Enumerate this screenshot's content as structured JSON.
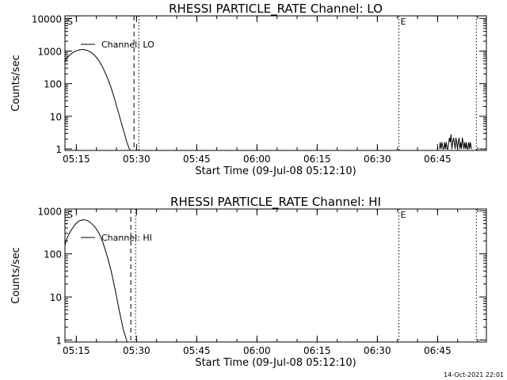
{
  "footer": "14-Oct-2021 22:01",
  "chart_data": [
    {
      "type": "line",
      "title": "RHESSI PARTICLE_RATE Channel: LO",
      "xlabel": "Start Time (09-Jul-08 05:12:10)",
      "ylabel": "Counts/sec",
      "yscale": "log",
      "xlim_minutes": [
        0,
        105
      ],
      "ylim": [
        0.9,
        12000
      ],
      "x_ticks": [
        "05:15",
        "05:30",
        "05:45",
        "06:00",
        "06:15",
        "06:30",
        "06:45"
      ],
      "x_tick_minutes": [
        2.833,
        17.833,
        32.833,
        47.833,
        62.833,
        77.833,
        92.833
      ],
      "y_ticks": [
        "1",
        "10",
        "100",
        "1000",
        "10000"
      ],
      "y_tick_values": [
        1,
        10,
        100,
        1000,
        10000
      ],
      "legend": {
        "label": "Channel: LO",
        "placement": "top-left"
      },
      "markers": [
        {
          "label": "S",
          "minute": 0.2,
          "style": "none"
        },
        {
          "label": "",
          "minute": 17.2,
          "style": "dashed"
        },
        {
          "label": "",
          "minute": 18.4,
          "style": "dotted"
        },
        {
          "label": "E",
          "minute": 83.2,
          "style": "dotted"
        },
        {
          "label": "",
          "minute": 102.5,
          "style": "dotted"
        }
      ],
      "series": [
        {
          "name": "Channel: LO",
          "x": [
            0,
            0.5,
            1.5,
            2.5,
            3.5,
            4.5,
            5.5,
            6.5,
            7.5,
            8.5,
            9.5,
            10.5,
            11.5,
            12.5,
            13.5,
            14.5,
            15.5,
            16.2
          ],
          "y": [
            450,
            620,
            820,
            980,
            1080,
            1120,
            1050,
            920,
            720,
            500,
            300,
            160,
            75,
            30,
            11,
            4,
            1.5,
            0.9
          ]
        },
        {
          "name": "Channel: LO noise",
          "x": [
            93.3,
            93.5,
            93.7,
            93.9,
            94.2,
            94.4,
            94.6,
            94.8,
            95.0,
            95.2,
            95.4,
            95.6,
            95.8,
            96.0,
            96.2,
            96.4,
            96.6,
            96.8,
            97.0,
            97.2,
            97.4,
            97.6,
            97.8,
            98.0,
            98.2,
            98.4,
            98.6,
            98.8,
            99.0,
            99.2,
            99.4,
            99.6,
            99.8,
            100.0,
            100.2,
            100.4,
            100.6,
            100.8,
            101.0,
            101.3
          ],
          "y": [
            1,
            1.6,
            1,
            1.6,
            1,
            1,
            1.6,
            1,
            1.6,
            1,
            1,
            1.6,
            2.2,
            1.6,
            2.8,
            1,
            1.6,
            2.2,
            1.6,
            1,
            2.2,
            1.6,
            1,
            1.6,
            2.2,
            1,
            1.6,
            1,
            2.2,
            1.6,
            1,
            1.6,
            1,
            1.6,
            1,
            1,
            1.6,
            1,
            1.6,
            1
          ]
        }
      ]
    },
    {
      "type": "line",
      "title": "RHESSI PARTICLE_RATE Channel: HI",
      "xlabel": "Start Time (09-Jul-08 05:12:10)",
      "ylabel": "Counts/sec",
      "yscale": "log",
      "xlim_minutes": [
        0,
        105
      ],
      "ylim": [
        0.9,
        1100
      ],
      "x_ticks": [
        "05:15",
        "05:30",
        "05:45",
        "06:00",
        "06:15",
        "06:30",
        "06:45"
      ],
      "x_tick_minutes": [
        2.833,
        17.833,
        32.833,
        47.833,
        62.833,
        77.833,
        92.833
      ],
      "y_ticks": [
        "1",
        "10",
        "100",
        "1000"
      ],
      "y_tick_values": [
        1,
        10,
        100,
        1000
      ],
      "legend": {
        "label": "Channel: HI",
        "placement": "top-left"
      },
      "markers": [
        {
          "label": "S",
          "minute": 0.2,
          "style": "none"
        },
        {
          "label": "",
          "minute": 16.4,
          "style": "dashed"
        },
        {
          "label": "",
          "minute": 17.6,
          "style": "dotted"
        },
        {
          "label": "E",
          "minute": 83.2,
          "style": "dotted"
        },
        {
          "label": "",
          "minute": 102.5,
          "style": "dotted"
        }
      ],
      "series": [
        {
          "name": "Channel: HI",
          "x": [
            0,
            0.5,
            1.5,
            2.5,
            3.5,
            4.5,
            5.5,
            6.5,
            7.5,
            8.5,
            9.5,
            10.5,
            11.5,
            12.5,
            13.5,
            14.5,
            15.5
          ],
          "y": [
            160,
            230,
            350,
            480,
            580,
            620,
            600,
            520,
            420,
            300,
            180,
            90,
            40,
            15,
            5,
            1.8,
            0.9
          ]
        }
      ]
    }
  ]
}
